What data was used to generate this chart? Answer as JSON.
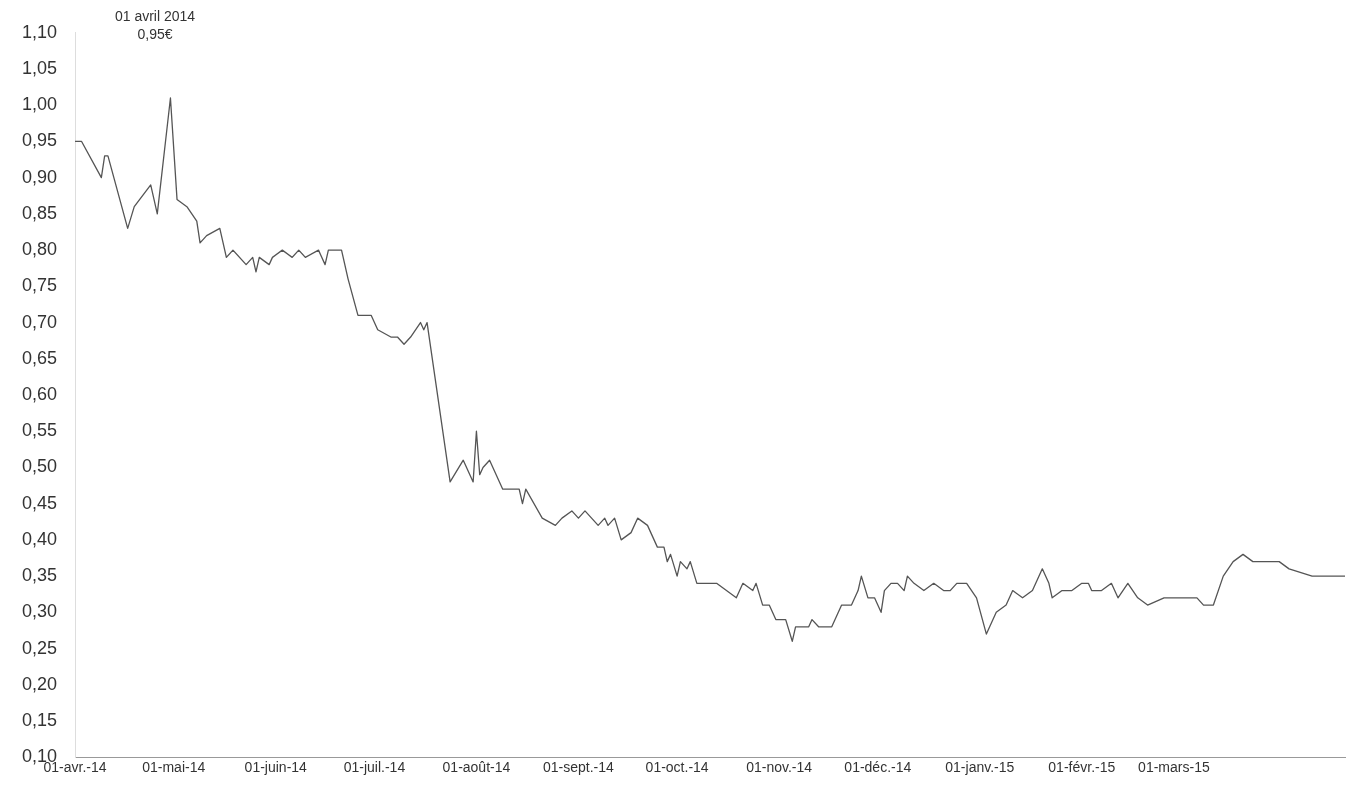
{
  "chart_data": {
    "type": "line",
    "annotations": [
      "01 avril 2014\n0,95€"
    ],
    "x": [
      "2014-04-01",
      "2014-04-03",
      "2014-04-09",
      "2014-04-10",
      "2014-04-11",
      "2014-04-17",
      "2014-04-19",
      "2014-04-24",
      "2014-04-26",
      "2014-04-30",
      "2014-05-02",
      "2014-05-05",
      "2014-05-08",
      "2014-05-09",
      "2014-05-11",
      "2014-05-15",
      "2014-05-17",
      "2014-05-19",
      "2014-05-23",
      "2014-05-25",
      "2014-05-26",
      "2014-05-27",
      "2014-05-30",
      "2014-05-31",
      "2014-06-03",
      "2014-06-06",
      "2014-06-08",
      "2014-06-10",
      "2014-06-14",
      "2014-06-16",
      "2014-06-17",
      "2014-06-21",
      "2014-06-23",
      "2014-06-26",
      "2014-06-30",
      "2014-07-02",
      "2014-07-06",
      "2014-07-08",
      "2014-07-10",
      "2014-07-12",
      "2014-07-15",
      "2014-07-16",
      "2014-07-17",
      "2014-07-24",
      "2014-07-28",
      "2014-07-31",
      "2014-08-01",
      "2014-08-02",
      "2014-08-03",
      "2014-08-05",
      "2014-08-09",
      "2014-08-14",
      "2014-08-15",
      "2014-08-16",
      "2014-08-21",
      "2014-08-25",
      "2014-08-27",
      "2014-08-30",
      "2014-09-01",
      "2014-09-03",
      "2014-09-05",
      "2014-09-07",
      "2014-09-09",
      "2014-09-10",
      "2014-09-12",
      "2014-09-14",
      "2014-09-17",
      "2014-09-19",
      "2014-09-22",
      "2014-09-25",
      "2014-09-27",
      "2014-09-28",
      "2014-09-29",
      "2014-10-01",
      "2014-10-02",
      "2014-10-04",
      "2014-10-05",
      "2014-10-07",
      "2014-10-13",
      "2014-10-19",
      "2014-10-21",
      "2014-10-24",
      "2014-10-25",
      "2014-10-27",
      "2014-10-29",
      "2014-10-31",
      "2014-11-03",
      "2014-11-05",
      "2014-11-06",
      "2014-11-10",
      "2014-11-11",
      "2014-11-13",
      "2014-11-17",
      "2014-11-20",
      "2014-11-23",
      "2014-11-25",
      "2014-11-26",
      "2014-11-28",
      "2014-11-30",
      "2014-12-02",
      "2014-12-03",
      "2014-12-05",
      "2014-12-07",
      "2014-12-09",
      "2014-12-10",
      "2014-12-12",
      "2014-12-15",
      "2014-12-18",
      "2014-12-21",
      "2014-12-23",
      "2014-12-25",
      "2014-12-28",
      "2014-12-31",
      "2015-01-03",
      "2015-01-04",
      "2015-01-06",
      "2015-01-09",
      "2015-01-11",
      "2015-01-14",
      "2015-01-17",
      "2015-01-20",
      "2015-01-22",
      "2015-01-23",
      "2015-01-26",
      "2015-01-29",
      "2015-02-01",
      "2015-02-03",
      "2015-02-04",
      "2015-02-07",
      "2015-02-10",
      "2015-02-12",
      "2015-02-15",
      "2015-02-18",
      "2015-02-21",
      "2015-02-26",
      "2015-03-02",
      "2015-03-05",
      "2015-03-08",
      "2015-03-10",
      "2015-03-13",
      "2015-03-16",
      "2015-03-19",
      "2015-03-22",
      "2015-03-25",
      "2015-03-28",
      "2015-04-02",
      "2015-04-05",
      "2015-04-12",
      "2015-04-22"
    ],
    "series": [
      {
        "color": "#555555",
        "values": [
          0.95,
          0.95,
          0.9,
          0.93,
          0.93,
          0.83,
          0.86,
          0.89,
          0.85,
          1.01,
          0.87,
          0.86,
          0.84,
          0.81,
          0.82,
          0.83,
          0.79,
          0.8,
          0.78,
          0.79,
          0.77,
          0.79,
          0.78,
          0.79,
          0.8,
          0.79,
          0.8,
          0.79,
          0.8,
          0.78,
          0.8,
          0.8,
          0.76,
          0.71,
          0.71,
          0.69,
          0.68,
          0.68,
          0.67,
          0.68,
          0.7,
          0.69,
          0.7,
          0.48,
          0.51,
          0.48,
          0.55,
          0.49,
          0.5,
          0.51,
          0.47,
          0.47,
          0.45,
          0.47,
          0.43,
          0.42,
          0.43,
          0.44,
          0.43,
          0.44,
          0.43,
          0.42,
          0.43,
          0.42,
          0.43,
          0.4,
          0.41,
          0.43,
          0.42,
          0.39,
          0.39,
          0.37,
          0.38,
          0.35,
          0.37,
          0.36,
          0.37,
          0.34,
          0.34,
          0.32,
          0.34,
          0.33,
          0.34,
          0.31,
          0.31,
          0.29,
          0.29,
          0.26,
          0.28,
          0.28,
          0.29,
          0.28,
          0.28,
          0.31,
          0.31,
          0.33,
          0.35,
          0.32,
          0.32,
          0.3,
          0.33,
          0.34,
          0.34,
          0.33,
          0.35,
          0.34,
          0.33,
          0.34,
          0.33,
          0.33,
          0.34,
          0.34,
          0.32,
          0.27,
          0.28,
          0.3,
          0.31,
          0.33,
          0.32,
          0.33,
          0.36,
          0.34,
          0.32,
          0.33,
          0.33,
          0.34,
          0.34,
          0.33,
          0.33,
          0.34,
          0.32,
          0.34,
          0.32,
          0.31,
          0.32,
          0.32,
          0.32,
          0.32,
          0.31,
          0.31,
          0.35,
          0.37,
          0.38,
          0.37,
          0.37,
          0.37,
          0.36,
          0.35,
          0.35
        ]
      }
    ],
    "xlim": [
      "2014-04-01",
      "2015-04-22"
    ],
    "xticks": [
      {
        "value": "2014-04-01",
        "label": "01-avr.-14"
      },
      {
        "value": "2014-05-01",
        "label": "01-mai-14"
      },
      {
        "value": "2014-06-01",
        "label": "01-juin-14"
      },
      {
        "value": "2014-07-01",
        "label": "01-juil.-14"
      },
      {
        "value": "2014-08-01",
        "label": "01-août-14"
      },
      {
        "value": "2014-09-01",
        "label": "01-sept.-14"
      },
      {
        "value": "2014-10-01",
        "label": "01-oct.-14"
      },
      {
        "value": "2014-11-01",
        "label": "01-nov.-14"
      },
      {
        "value": "2014-12-01",
        "label": "01-déc.-14"
      },
      {
        "value": "2015-01-01",
        "label": "01-janv.-15"
      },
      {
        "value": "2015-02-01",
        "label": "01-févr.-15"
      },
      {
        "value": "2015-03-01",
        "label": "01-mars-15"
      }
    ],
    "ylim": [
      0.1,
      1.1
    ],
    "yticks": [
      {
        "value": 0.1,
        "label": "0,10"
      },
      {
        "value": 0.15,
        "label": "0,15"
      },
      {
        "value": 0.2,
        "label": "0,20"
      },
      {
        "value": 0.25,
        "label": "0,25"
      },
      {
        "value": 0.3,
        "label": "0,30"
      },
      {
        "value": 0.35,
        "label": "0,35"
      },
      {
        "value": 0.4,
        "label": "0,40"
      },
      {
        "value": 0.45,
        "label": "0,45"
      },
      {
        "value": 0.5,
        "label": "0,50"
      },
      {
        "value": 0.55,
        "label": "0,55"
      },
      {
        "value": 0.6,
        "label": "0,60"
      },
      {
        "value": 0.65,
        "label": "0,65"
      },
      {
        "value": 0.7,
        "label": "0,70"
      },
      {
        "value": 0.75,
        "label": "0,75"
      },
      {
        "value": 0.8,
        "label": "0,80"
      },
      {
        "value": 0.85,
        "label": "0,85"
      },
      {
        "value": 0.9,
        "label": "0,90"
      },
      {
        "value": 0.95,
        "label": "0,95"
      },
      {
        "value": 1.0,
        "label": "1,00"
      },
      {
        "value": 1.05,
        "label": "1,05"
      },
      {
        "value": 1.1,
        "label": "1,10"
      }
    ],
    "grid": false,
    "legend": false,
    "marker": "none",
    "line_style": "solid"
  }
}
